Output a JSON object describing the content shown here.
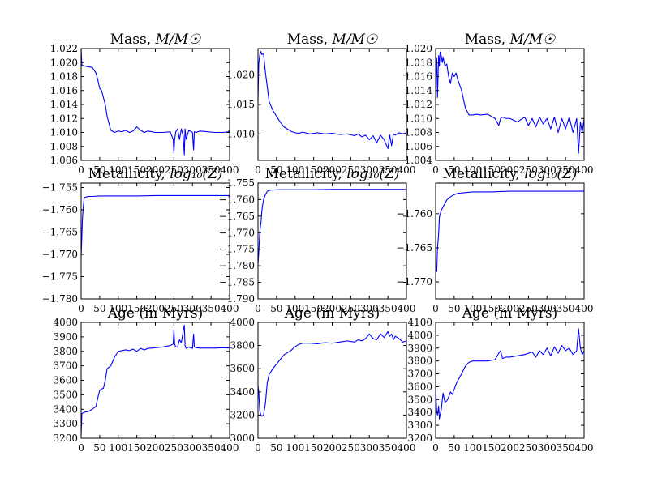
{
  "figure": {
    "background": "#ffffff",
    "line_color": "#0000ff"
  },
  "chart_data": [
    {
      "type": "line",
      "title": "Mass, ",
      "title_math": "M/M☉",
      "xlim": [
        0,
        400
      ],
      "ylim": [
        1.006,
        1.022
      ],
      "xticks": [
        "0",
        "50",
        "100",
        "150",
        "200",
        "250",
        "300",
        "350",
        "400"
      ],
      "yticks": [
        "1.006",
        "1.008",
        "1.010",
        "1.012",
        "1.014",
        "1.016",
        "1.018",
        "1.020",
        "1.022"
      ],
      "x": [
        0,
        2,
        5,
        10,
        20,
        30,
        40,
        45,
        50,
        55,
        60,
        65,
        70,
        80,
        90,
        100,
        110,
        120,
        130,
        140,
        150,
        160,
        170,
        180,
        200,
        220,
        240,
        248,
        250,
        252,
        255,
        260,
        265,
        270,
        275,
        278,
        280,
        283,
        290,
        300,
        303,
        305,
        310,
        320,
        340,
        360,
        380,
        400
      ],
      "y": [
        1.022,
        1.0195,
        1.0196,
        1.0195,
        1.0194,
        1.0193,
        1.0185,
        1.0175,
        1.0163,
        1.016,
        1.015,
        1.014,
        1.0123,
        1.0103,
        1.01,
        1.0102,
        1.0101,
        1.0103,
        1.01,
        1.0102,
        1.0108,
        1.0103,
        1.01,
        1.0102,
        1.01,
        1.01,
        1.0101,
        1.009,
        1.007,
        1.009,
        1.0101,
        1.0105,
        1.009,
        1.0105,
        1.0095,
        1.0068,
        1.0105,
        1.009,
        1.0103,
        1.01,
        1.0075,
        1.0101,
        1.01,
        1.0102,
        1.0101,
        1.01,
        1.01,
        1.0101
      ]
    },
    {
      "type": "line",
      "title": "Mass, ",
      "title_math": "M/M☉",
      "xlim": [
        0,
        400
      ],
      "ylim": [
        1.0055,
        1.0245
      ],
      "xticks": [
        "0",
        "50",
        "100",
        "150",
        "200",
        "250",
        "300",
        "350",
        "400"
      ],
      "yticks": [
        "1.010",
        "1.015",
        "1.020"
      ],
      "x": [
        0,
        2,
        5,
        8,
        10,
        15,
        20,
        25,
        30,
        40,
        50,
        60,
        70,
        80,
        90,
        100,
        110,
        120,
        140,
        160,
        180,
        200,
        220,
        240,
        260,
        270,
        280,
        290,
        300,
        310,
        320,
        330,
        340,
        350,
        355,
        360,
        365,
        370,
        380,
        390,
        400
      ],
      "y": [
        1.0155,
        1.022,
        1.0235,
        1.024,
        1.0235,
        1.0236,
        1.0205,
        1.018,
        1.0155,
        1.014,
        1.013,
        1.012,
        1.0112,
        1.0108,
        1.0104,
        1.0102,
        1.0101,
        1.0103,
        1.01,
        1.0102,
        1.01,
        1.0101,
        1.0099,
        1.01,
        1.0097,
        1.01,
        1.0095,
        1.0098,
        1.009,
        1.0097,
        1.0085,
        1.0098,
        1.009,
        1.0075,
        1.0098,
        1.008,
        1.01,
        1.0098,
        1.0102,
        1.01,
        1.0102
      ]
    },
    {
      "type": "line",
      "title": "Mass, ",
      "title_math": "M/M☉",
      "xlim": [
        0,
        400
      ],
      "ylim": [
        1.004,
        1.02
      ],
      "xticks": [
        "0",
        "50",
        "100",
        "150",
        "200",
        "250",
        "300",
        "350",
        "400"
      ],
      "yticks": [
        "1.004",
        "1.006",
        "1.008",
        "1.010",
        "1.012",
        "1.014",
        "1.016",
        "1.018",
        "1.020"
      ],
      "x": [
        0,
        3,
        5,
        8,
        10,
        12,
        15,
        18,
        20,
        25,
        30,
        35,
        40,
        45,
        50,
        55,
        60,
        70,
        80,
        90,
        100,
        110,
        120,
        140,
        160,
        170,
        175,
        180,
        190,
        200,
        220,
        240,
        250,
        260,
        270,
        280,
        290,
        300,
        310,
        320,
        330,
        340,
        350,
        360,
        370,
        380,
        385,
        390,
        395,
        400
      ],
      "y": [
        1.0145,
        1.0187,
        1.013,
        1.019,
        1.0175,
        1.0195,
        1.019,
        1.018,
        1.0188,
        1.0175,
        1.0178,
        1.016,
        1.015,
        1.0165,
        1.016,
        1.0165,
        1.0155,
        1.014,
        1.0115,
        1.0105,
        1.0105,
        1.0106,
        1.0105,
        1.0106,
        1.01,
        1.009,
        1.01,
        1.0102,
        1.01,
        1.01,
        1.0095,
        1.0102,
        1.009,
        1.01,
        1.0088,
        1.0102,
        1.0092,
        1.01,
        1.0085,
        1.0102,
        1.008,
        1.01,
        1.0085,
        1.0102,
        1.008,
        1.01,
        1.005,
        1.0095,
        1.008,
        1.01
      ]
    },
    {
      "type": "line",
      "title": "Metallicity, ",
      "title_math": "log₁₀(Z)",
      "xlim": [
        0,
        400
      ],
      "ylim": [
        -1.78,
        -1.754
      ],
      "xticks": [
        "0",
        "50",
        "100",
        "150",
        "200",
        "250",
        "300",
        "350",
        "400"
      ],
      "yticks": [
        "−1.780",
        "−1.775",
        "−1.770",
        "−1.765",
        "−1.760",
        "−1.755"
      ],
      "x": [
        0,
        2,
        3,
        5,
        8,
        10,
        15,
        20,
        30,
        50,
        100,
        150,
        200,
        250,
        300,
        350,
        400
      ],
      "y": [
        -1.7705,
        -1.766,
        -1.763,
        -1.76,
        -1.7575,
        -1.7572,
        -1.7571,
        -1.757,
        -1.757,
        -1.7569,
        -1.7569,
        -1.7569,
        -1.7568,
        -1.7568,
        -1.7568,
        -1.7568,
        -1.7568
      ]
    },
    {
      "type": "line",
      "title": "Metallicity, ",
      "title_math": "log₁₀(Z)",
      "xlim": [
        0,
        400
      ],
      "ylim": [
        -1.79,
        -1.755
      ],
      "xticks": [
        "0",
        "50",
        "100",
        "150",
        "200",
        "250",
        "300",
        "350",
        "400"
      ],
      "yticks": [
        "−1.790",
        "−1.785",
        "−1.780",
        "−1.775",
        "−1.770",
        "−1.765",
        "−1.760",
        "−1.755"
      ],
      "x": [
        0,
        2,
        5,
        8,
        10,
        12,
        15,
        20,
        25,
        30,
        40,
        60,
        100,
        150,
        200,
        250,
        300,
        350,
        400
      ],
      "y": [
        -1.7795,
        -1.776,
        -1.7695,
        -1.767,
        -1.764,
        -1.762,
        -1.76,
        -1.7585,
        -1.7575,
        -1.7572,
        -1.7571,
        -1.757,
        -1.757,
        -1.757,
        -1.7569,
        -1.7569,
        -1.7569,
        -1.7569,
        -1.7569
      ]
    },
    {
      "type": "line",
      "title": "Metallicity, ",
      "title_math": "log₁₀(Z)",
      "xlim": [
        0,
        400
      ],
      "ylim": [
        -1.7725,
        -1.7555
      ],
      "xticks": [
        "0",
        "50",
        "100",
        "150",
        "200",
        "250",
        "300",
        "350",
        "400"
      ],
      "yticks": [
        "−1.770",
        "−1.765",
        "−1.760"
      ],
      "x": [
        0,
        3,
        5,
        8,
        10,
        15,
        20,
        25,
        30,
        40,
        50,
        60,
        80,
        100,
        150,
        200,
        250,
        300,
        350,
        400
      ],
      "y": [
        -1.7675,
        -1.7685,
        -1.765,
        -1.763,
        -1.7605,
        -1.7595,
        -1.759,
        -1.7585,
        -1.758,
        -1.7575,
        -1.7572,
        -1.757,
        -1.7569,
        -1.7568,
        -1.7568,
        -1.7567,
        -1.7567,
        -1.7567,
        -1.7567,
        -1.7567
      ]
    },
    {
      "type": "line",
      "title": "Age (in Myrs)",
      "xlim": [
        0,
        400
      ],
      "ylim": [
        3200,
        4000
      ],
      "xticks": [
        "0",
        "50",
        "100",
        "150",
        "200",
        "250",
        "300",
        "350",
        "400"
      ],
      "yticks": [
        "3200",
        "3300",
        "3400",
        "3500",
        "3600",
        "3700",
        "3800",
        "3900",
        "4000"
      ],
      "x": [
        0,
        2,
        5,
        10,
        20,
        30,
        40,
        45,
        50,
        55,
        60,
        65,
        70,
        80,
        90,
        100,
        110,
        120,
        130,
        140,
        150,
        160,
        170,
        180,
        200,
        220,
        240,
        248,
        250,
        252,
        255,
        260,
        265,
        270,
        275,
        278,
        280,
        283,
        290,
        300,
        303,
        305,
        310,
        320,
        340,
        360,
        380,
        400
      ],
      "y": [
        3220,
        3370,
        3375,
        3380,
        3385,
        3400,
        3420,
        3480,
        3530,
        3540,
        3545,
        3600,
        3680,
        3700,
        3760,
        3800,
        3805,
        3810,
        3805,
        3815,
        3800,
        3820,
        3810,
        3820,
        3825,
        3830,
        3840,
        3850,
        3950,
        3850,
        3830,
        3830,
        3880,
        3860,
        3940,
        3980,
        3840,
        3820,
        3830,
        3820,
        3920,
        3830,
        3825,
        3822,
        3823,
        3822,
        3825,
        3823
      ]
    },
    {
      "type": "line",
      "title": "Age (in Myrs)",
      "xlim": [
        0,
        400
      ],
      "ylim": [
        3000,
        4000
      ],
      "xticks": [
        "0",
        "50",
        "100",
        "150",
        "200",
        "250",
        "300",
        "350",
        "400"
      ],
      "yticks": [
        "3000",
        "3200",
        "3400",
        "3600",
        "3800",
        "4000"
      ],
      "x": [
        0,
        2,
        5,
        8,
        10,
        15,
        20,
        25,
        30,
        40,
        50,
        60,
        70,
        80,
        90,
        100,
        110,
        120,
        140,
        160,
        180,
        200,
        220,
        240,
        260,
        270,
        280,
        290,
        300,
        310,
        320,
        330,
        340,
        350,
        355,
        360,
        365,
        370,
        380,
        390,
        400
      ],
      "y": [
        3450,
        3400,
        3230,
        3200,
        3190,
        3200,
        3300,
        3480,
        3550,
        3600,
        3640,
        3680,
        3720,
        3740,
        3760,
        3790,
        3810,
        3820,
        3820,
        3815,
        3825,
        3820,
        3830,
        3840,
        3830,
        3850,
        3840,
        3860,
        3900,
        3860,
        3850,
        3900,
        3870,
        3920,
        3880,
        3900,
        3850,
        3880,
        3860,
        3830,
        3840
      ]
    },
    {
      "type": "line",
      "title": "Age (in Myrs)",
      "xlim": [
        0,
        400
      ],
      "ylim": [
        3200,
        4100
      ],
      "xticks": [
        "0",
        "50",
        "100",
        "150",
        "200",
        "250",
        "300",
        "350",
        "400"
      ],
      "yticks": [
        "3200",
        "3300",
        "3400",
        "3500",
        "3600",
        "3700",
        "3800",
        "3900",
        "4000",
        "4100"
      ],
      "x": [
        0,
        3,
        5,
        8,
        10,
        12,
        15,
        18,
        20,
        25,
        30,
        35,
        40,
        45,
        50,
        55,
        60,
        70,
        80,
        90,
        100,
        110,
        120,
        140,
        160,
        170,
        175,
        180,
        190,
        200,
        220,
        240,
        250,
        260,
        270,
        280,
        290,
        300,
        310,
        320,
        330,
        340,
        350,
        360,
        370,
        380,
        385,
        390,
        395,
        400
      ],
      "y": [
        3600,
        3400,
        3380,
        3450,
        3350,
        3380,
        3420,
        3500,
        3550,
        3480,
        3490,
        3520,
        3560,
        3540,
        3580,
        3620,
        3650,
        3700,
        3760,
        3790,
        3800,
        3800,
        3800,
        3800,
        3810,
        3860,
        3880,
        3820,
        3830,
        3830,
        3840,
        3850,
        3860,
        3870,
        3830,
        3880,
        3850,
        3900,
        3840,
        3910,
        3860,
        3920,
        3880,
        3900,
        3850,
        3880,
        4050,
        3900,
        3850,
        3880
      ]
    }
  ]
}
